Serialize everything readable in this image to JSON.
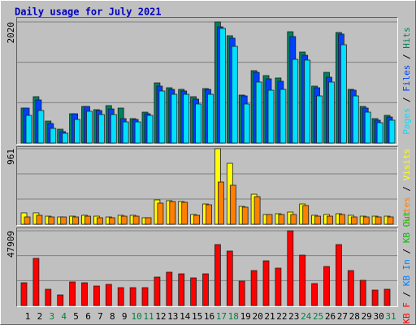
{
  "chart_data": [
    {
      "type": "bar",
      "title": "Daily usage for July 2021",
      "legend_separator": " / ",
      "categories": [
        "1",
        "2",
        "3",
        "4",
        "5",
        "6",
        "7",
        "8",
        "9",
        "10",
        "11",
        "12",
        "13",
        "14",
        "15",
        "16",
        "17",
        "18",
        "19",
        "20",
        "21",
        "22",
        "23",
        "24",
        "25",
        "26",
        "27",
        "28",
        "29",
        "30",
        "31"
      ],
      "highlight_indices": [
        2,
        3,
        9,
        10,
        16,
        17,
        23,
        24,
        30
      ],
      "highlight_color": "#008040",
      "ylim": [
        0,
        2020
      ],
      "yticks": [
        2020
      ],
      "grid_divisions": 3,
      "series": [
        {
          "name": "Hits",
          "color": "#00805c",
          "values": [
            583,
            773,
            366,
            230,
            488,
            610,
            556,
            624,
            583,
            407,
            515,
            1003,
            922,
            895,
            773,
            908,
            2020,
            1790,
            800,
            1207,
            1125,
            1085,
            1857,
            1518,
            949,
            1179,
            1844,
            895,
            610,
            407,
            461
          ]
        },
        {
          "name": "Files",
          "color": "#0040ff",
          "values": [
            583,
            719,
            325,
            190,
            488,
            610,
            542,
            569,
            407,
            393,
            488,
            949,
            895,
            868,
            732,
            895,
            1939,
            1749,
            786,
            1179,
            1071,
            1030,
            1776,
            1464,
            922,
            1098,
            1817,
            881,
            583,
            380,
            434
          ]
        },
        {
          "name": "Pages",
          "color": "#00e0ff",
          "values": [
            461,
            542,
            244,
            163,
            393,
            529,
            475,
            475,
            352,
            352,
            461,
            868,
            813,
            813,
            651,
            813,
            1912,
            1613,
            651,
            1017,
            881,
            895,
            1396,
            1383,
            786,
            1017,
            1640,
            786,
            515,
            339,
            380
          ]
        }
      ]
    },
    {
      "type": "bar",
      "ylim": [
        0,
        961
      ],
      "yticks": [
        961
      ],
      "grid_divisions": 3,
      "series": [
        {
          "name": "Visits",
          "color": "#ffff00",
          "values": [
            145,
            145,
            103,
            93,
            103,
            114,
            103,
            93,
            114,
            114,
            83,
            310,
            300,
            289,
            124,
            258,
            961,
            775,
            227,
            382,
            124,
            134,
            155,
            258,
            114,
            124,
            134,
            114,
            103,
            103,
            103
          ]
        },
        {
          "name": "Sites",
          "color": "#ff8000",
          "values": [
            93,
            114,
            93,
            93,
            93,
            103,
            83,
            83,
            103,
            103,
            83,
            269,
            289,
            279,
            114,
            248,
            537,
            496,
            217,
            351,
            124,
            124,
            124,
            238,
            103,
            103,
            124,
            93,
            93,
            93,
            93
          ]
        }
      ]
    },
    {
      "type": "bar",
      "ylim": [
        0,
        47909
      ],
      "yticks": [
        47909
      ],
      "grid_divisions": 3,
      "series": [
        {
          "name": "KB F",
          "color": "#ff0000",
          "values": [
            14582,
            30207,
            10416,
            6770,
            15103,
            14582,
            12499,
            13541,
            11458,
            11458,
            11458,
            18228,
            21353,
            20311,
            17707,
            20311,
            39060,
            34894,
            15624,
            22394,
            28644,
            23957,
            47909,
            32290,
            14062,
            24998,
            39060,
            22394,
            16145,
            9895,
            10416
          ]
        }
      ],
      "legend_extra": [
        {
          "name": "KB In",
          "color": "#0080ff"
        },
        {
          "name": "KB Out",
          "color": "#00c000"
        }
      ]
    }
  ]
}
